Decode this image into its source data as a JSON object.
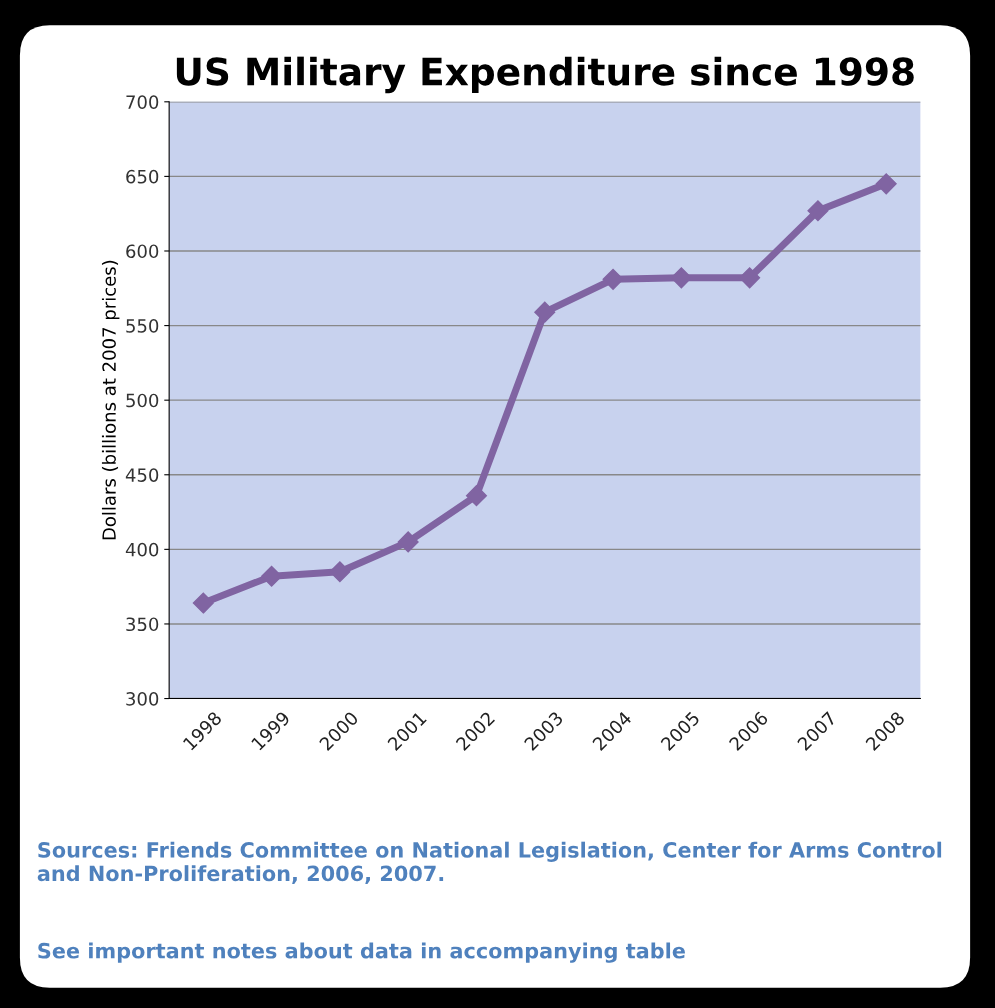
{
  "chart_data": {
    "type": "line",
    "title": "US Military Expenditure since 1998",
    "ylabel": "Dollars (billions at 2007 prices)",
    "categories": [
      "1998",
      "1999",
      "2000",
      "2001",
      "2002",
      "2003",
      "2004",
      "2005",
      "2006",
      "2007",
      "2008"
    ],
    "series": [
      {
        "color": "#8064a2",
        "values": [
          364,
          382,
          385,
          405,
          436,
          559,
          581,
          582,
          582,
          627,
          645
        ]
      }
    ],
    "ylim": [
      300,
      700
    ],
    "yticks": [
      300,
      350,
      400,
      450,
      500,
      550,
      600,
      650,
      700
    ],
    "grid": "y",
    "marker": "diamond",
    "line_style": "solid",
    "annotations": [
      "Sources: Friends Committee on National Legislation, Center for Arms Control and Non-Proliferation, 2006, 2007.",
      "See important notes about data in accompanying table"
    ]
  }
}
